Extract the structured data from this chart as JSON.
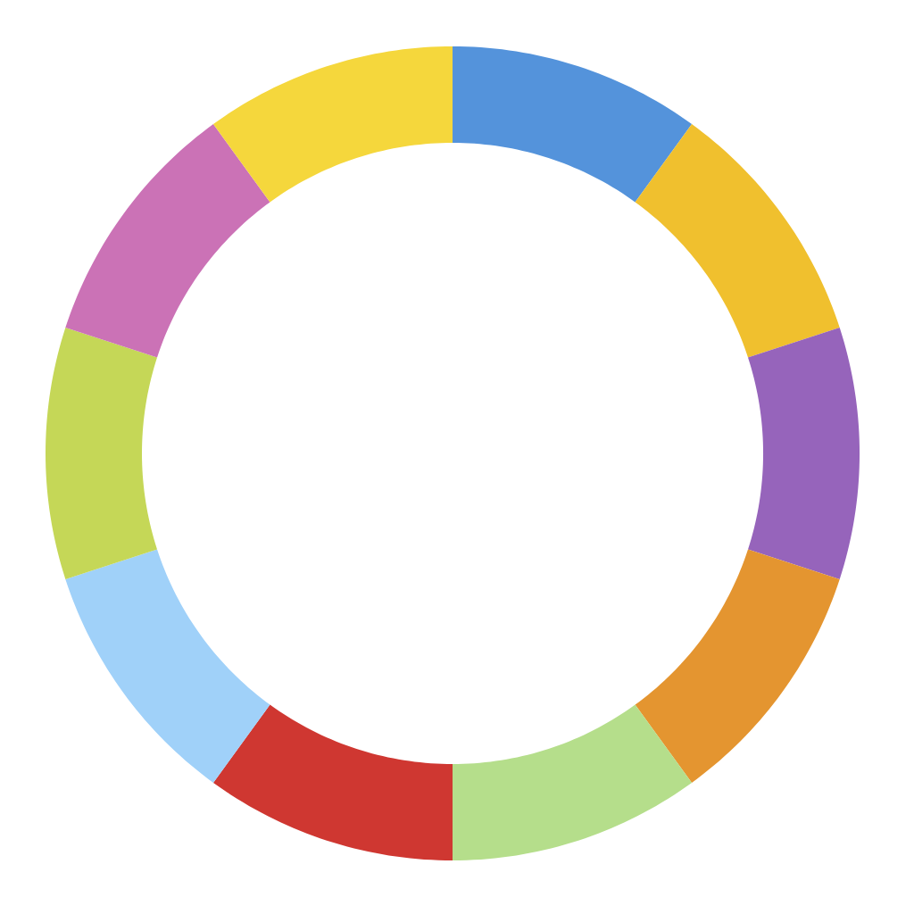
{
  "chart_data": {
    "type": "donut",
    "categories": [
      null,
      null,
      null,
      null,
      null,
      null,
      null,
      null,
      null,
      null
    ],
    "values": [
      10,
      10,
      10,
      10,
      10,
      10,
      10,
      10,
      10,
      10
    ],
    "colors": [
      "#5493db",
      "#f0c02e",
      "#9664bb",
      "#e49530",
      "#b5de8b",
      "#cf3731",
      "#a0d1f9",
      "#c5d757",
      "#cb72b6",
      "#f5d73c"
    ]
  }
}
